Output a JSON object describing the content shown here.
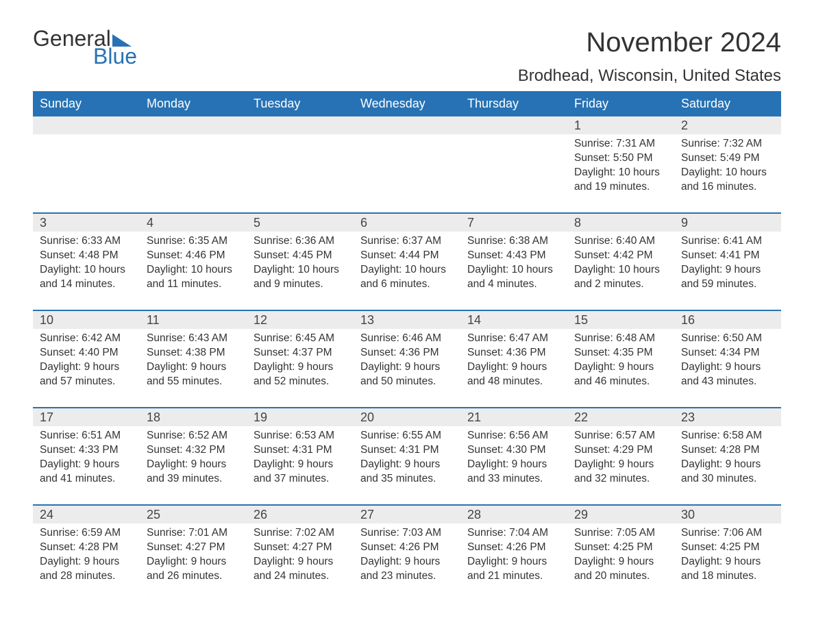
{
  "logo": {
    "text1": "General",
    "text2": "Blue"
  },
  "title": "November 2024",
  "location": "Brodhead, Wisconsin, United States",
  "colors": {
    "header_bg": "#2772b4",
    "header_text": "#ffffff",
    "daynum_bg": "#ececec",
    "rule": "#2772b4",
    "text": "#333333",
    "background": "#ffffff"
  },
  "day_names": [
    "Sunday",
    "Monday",
    "Tuesday",
    "Wednesday",
    "Thursday",
    "Friday",
    "Saturday"
  ],
  "labels": {
    "sunrise": "Sunrise:",
    "sunset": "Sunset:",
    "daylight": "Daylight:"
  },
  "weeks": [
    [
      null,
      null,
      null,
      null,
      null,
      {
        "n": "1",
        "sunrise": "7:31 AM",
        "sunset": "5:50 PM",
        "daylight": "10 hours and 19 minutes."
      },
      {
        "n": "2",
        "sunrise": "7:32 AM",
        "sunset": "5:49 PM",
        "daylight": "10 hours and 16 minutes."
      }
    ],
    [
      {
        "n": "3",
        "sunrise": "6:33 AM",
        "sunset": "4:48 PM",
        "daylight": "10 hours and 14 minutes."
      },
      {
        "n": "4",
        "sunrise": "6:35 AM",
        "sunset": "4:46 PM",
        "daylight": "10 hours and 11 minutes."
      },
      {
        "n": "5",
        "sunrise": "6:36 AM",
        "sunset": "4:45 PM",
        "daylight": "10 hours and 9 minutes."
      },
      {
        "n": "6",
        "sunrise": "6:37 AM",
        "sunset": "4:44 PM",
        "daylight": "10 hours and 6 minutes."
      },
      {
        "n": "7",
        "sunrise": "6:38 AM",
        "sunset": "4:43 PM",
        "daylight": "10 hours and 4 minutes."
      },
      {
        "n": "8",
        "sunrise": "6:40 AM",
        "sunset": "4:42 PM",
        "daylight": "10 hours and 2 minutes."
      },
      {
        "n": "9",
        "sunrise": "6:41 AM",
        "sunset": "4:41 PM",
        "daylight": "9 hours and 59 minutes."
      }
    ],
    [
      {
        "n": "10",
        "sunrise": "6:42 AM",
        "sunset": "4:40 PM",
        "daylight": "9 hours and 57 minutes."
      },
      {
        "n": "11",
        "sunrise": "6:43 AM",
        "sunset": "4:38 PM",
        "daylight": "9 hours and 55 minutes."
      },
      {
        "n": "12",
        "sunrise": "6:45 AM",
        "sunset": "4:37 PM",
        "daylight": "9 hours and 52 minutes."
      },
      {
        "n": "13",
        "sunrise": "6:46 AM",
        "sunset": "4:36 PM",
        "daylight": "9 hours and 50 minutes."
      },
      {
        "n": "14",
        "sunrise": "6:47 AM",
        "sunset": "4:36 PM",
        "daylight": "9 hours and 48 minutes."
      },
      {
        "n": "15",
        "sunrise": "6:48 AM",
        "sunset": "4:35 PM",
        "daylight": "9 hours and 46 minutes."
      },
      {
        "n": "16",
        "sunrise": "6:50 AM",
        "sunset": "4:34 PM",
        "daylight": "9 hours and 43 minutes."
      }
    ],
    [
      {
        "n": "17",
        "sunrise": "6:51 AM",
        "sunset": "4:33 PM",
        "daylight": "9 hours and 41 minutes."
      },
      {
        "n": "18",
        "sunrise": "6:52 AM",
        "sunset": "4:32 PM",
        "daylight": "9 hours and 39 minutes."
      },
      {
        "n": "19",
        "sunrise": "6:53 AM",
        "sunset": "4:31 PM",
        "daylight": "9 hours and 37 minutes."
      },
      {
        "n": "20",
        "sunrise": "6:55 AM",
        "sunset": "4:31 PM",
        "daylight": "9 hours and 35 minutes."
      },
      {
        "n": "21",
        "sunrise": "6:56 AM",
        "sunset": "4:30 PM",
        "daylight": "9 hours and 33 minutes."
      },
      {
        "n": "22",
        "sunrise": "6:57 AM",
        "sunset": "4:29 PM",
        "daylight": "9 hours and 32 minutes."
      },
      {
        "n": "23",
        "sunrise": "6:58 AM",
        "sunset": "4:28 PM",
        "daylight": "9 hours and 30 minutes."
      }
    ],
    [
      {
        "n": "24",
        "sunrise": "6:59 AM",
        "sunset": "4:28 PM",
        "daylight": "9 hours and 28 minutes."
      },
      {
        "n": "25",
        "sunrise": "7:01 AM",
        "sunset": "4:27 PM",
        "daylight": "9 hours and 26 minutes."
      },
      {
        "n": "26",
        "sunrise": "7:02 AM",
        "sunset": "4:27 PM",
        "daylight": "9 hours and 24 minutes."
      },
      {
        "n": "27",
        "sunrise": "7:03 AM",
        "sunset": "4:26 PM",
        "daylight": "9 hours and 23 minutes."
      },
      {
        "n": "28",
        "sunrise": "7:04 AM",
        "sunset": "4:26 PM",
        "daylight": "9 hours and 21 minutes."
      },
      {
        "n": "29",
        "sunrise": "7:05 AM",
        "sunset": "4:25 PM",
        "daylight": "9 hours and 20 minutes."
      },
      {
        "n": "30",
        "sunrise": "7:06 AM",
        "sunset": "4:25 PM",
        "daylight": "9 hours and 18 minutes."
      }
    ]
  ]
}
